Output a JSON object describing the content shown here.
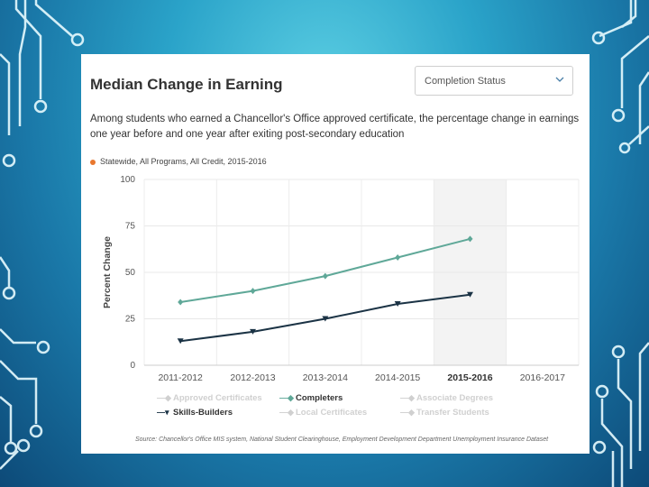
{
  "header": {
    "title": "Median Change in Earning",
    "dropdown_value": "Completion Status",
    "description": "Among students who earned a Chancellor's Office approved certificate, the percentage change in earnings one year before and one year after exiting post-secondary education",
    "filter_label": "Statewide, All Programs, All Credit, 2015-2016"
  },
  "colors": {
    "completers": "#5fa898",
    "skills_builders": "#1b3345",
    "filter_dot": "#e8772e",
    "highlight_band": "#f3f3f3"
  },
  "chart_data": {
    "type": "line",
    "ylabel": "Percent Change",
    "ylim": [
      0,
      100
    ],
    "yticks": [
      0,
      25,
      50,
      75,
      100
    ],
    "categories": [
      "2011-2012",
      "2012-2013",
      "2013-2014",
      "2014-2015",
      "2015-2016",
      "2016-2017"
    ],
    "highlight_category": "2015-2016",
    "series": [
      {
        "name": "Completers",
        "values": [
          34,
          40,
          48,
          58,
          68,
          null
        ]
      },
      {
        "name": "Skills-Builders",
        "values": [
          13,
          18,
          25,
          33,
          38,
          null
        ]
      }
    ],
    "legend": [
      {
        "name": "Approved Certificates",
        "active": false
      },
      {
        "name": "Completers",
        "active": true
      },
      {
        "name": "Associate Degrees",
        "active": false
      },
      {
        "name": "Skills-Builders",
        "active": true
      },
      {
        "name": "Local Certificates",
        "active": false
      },
      {
        "name": "Transfer Students",
        "active": false
      }
    ]
  },
  "footer": {
    "source": "Source: Chancellor's Office MIS system, National Student Clearinghouse, Employment Development Department Unemployment Insurance Dataset"
  }
}
